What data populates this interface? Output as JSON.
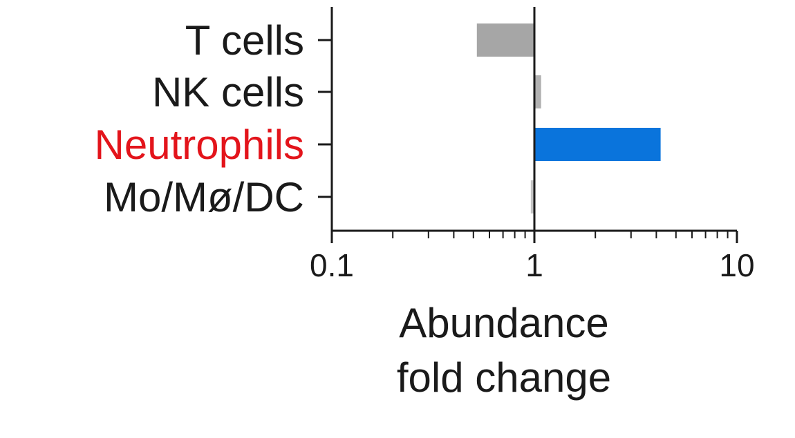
{
  "chart_data": {
    "type": "bar",
    "orientation": "horizontal",
    "x_scale": "log",
    "xlim": [
      0.1,
      10
    ],
    "x_ticks": [
      {
        "value": 0.1,
        "label": "0.1"
      },
      {
        "value": 1,
        "label": "1"
      },
      {
        "value": 10,
        "label": "10"
      }
    ],
    "xlabel_lines": [
      "Abundance",
      "fold change"
    ],
    "reference_value": 1,
    "categories": [
      {
        "label": "T cells",
        "value": 0.52,
        "bar_color": "#a6a6a6",
        "label_color": "#1a1a1a"
      },
      {
        "label": "NK cells",
        "value": 1.08,
        "bar_color": "#b3b3b3",
        "label_color": "#1a1a1a"
      },
      {
        "label": "Neutrophils",
        "value": 4.2,
        "bar_color": "#0a74dc",
        "label_color": "#e3141b"
      },
      {
        "label": "Mo/Mø/DC",
        "value": 0.96,
        "bar_color": "#c4c4c4",
        "label_color": "#1a1a1a"
      }
    ],
    "grid": false,
    "legend": false
  }
}
